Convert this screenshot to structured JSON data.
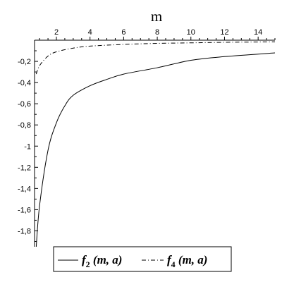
{
  "chart_data": {
    "type": "line",
    "xlabel": "m",
    "ylabel": "",
    "title": "",
    "xlim": [
      0.7,
      15
    ],
    "ylim": [
      -1.95,
      0
    ],
    "x_axis_position": "top",
    "x_ticks": [
      2,
      4,
      6,
      8,
      10,
      12,
      14
    ],
    "x_tick_labels": [
      "2",
      "4",
      "6",
      "8",
      "10",
      "12",
      "14"
    ],
    "y_ticks": [
      -0.2,
      -0.4,
      -0.6,
      -0.8,
      -1,
      -1.2,
      -1.4,
      -1.6,
      -1.8
    ],
    "y_tick_labels": [
      "-0,2",
      "-0,4",
      "-0,6",
      "-0,8",
      "-1",
      "-1,2",
      "-1,4",
      "-1,6",
      "-1,8"
    ],
    "grid": false,
    "legend_position": "bottom",
    "series": [
      {
        "name": "f2 (m, a)",
        "legend_main": "f",
        "legend_sub": "2",
        "legend_args": " (m, a)",
        "line_style": "solid",
        "color": "#000000",
        "points": [
          [
            0.8,
            -1.95
          ],
          [
            1.0,
            -1.56
          ],
          [
            1.5,
            -1.04
          ],
          [
            2.0,
            -0.78
          ],
          [
            2.5,
            -0.62
          ],
          [
            3.0,
            -0.52
          ],
          [
            4.0,
            -0.43
          ],
          [
            5.0,
            -0.37
          ],
          [
            6.0,
            -0.32
          ],
          [
            8.0,
            -0.26
          ],
          [
            10.0,
            -0.19
          ],
          [
            12.0,
            -0.155
          ],
          [
            15.0,
            -0.12
          ]
        ]
      },
      {
        "name": "f4 (m, a)",
        "legend_main": "f",
        "legend_sub": "4",
        "legend_args": " (m, a)",
        "line_style": "dashdot",
        "color": "#000000",
        "points": [
          [
            0.8,
            -0.32
          ],
          [
            1.0,
            -0.24
          ],
          [
            1.5,
            -0.15
          ],
          [
            2.0,
            -0.11
          ],
          [
            3.0,
            -0.075
          ],
          [
            4.0,
            -0.056
          ],
          [
            6.0,
            -0.04
          ],
          [
            8.0,
            -0.03
          ],
          [
            10.0,
            -0.025
          ],
          [
            12.0,
            -0.02
          ],
          [
            15.0,
            -0.016
          ]
        ]
      }
    ]
  }
}
